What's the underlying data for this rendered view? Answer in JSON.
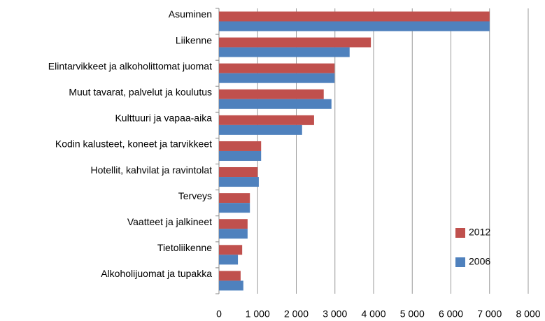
{
  "chart_data": {
    "type": "barh",
    "categories": [
      "Asuminen",
      "Liikenne",
      "Elintarvikkeet ja alkoholittomat juomat",
      "Muut tavarat, palvelut ja koulutus",
      "Kulttuuri ja vapaa-aika",
      "Kodin kalusteet, koneet ja tarvikkeet",
      "Hotellit, kahvilat ja ravintolat",
      "Terveys",
      "Vaatteet ja jalkineet",
      "Tietoliikenne",
      "Alkoholijuomat ja tupakka"
    ],
    "series": [
      {
        "name": "2012",
        "color": "#c0504d",
        "values": [
          7000,
          3930,
          2990,
          2710,
          2460,
          1090,
          1000,
          800,
          740,
          600,
          560
        ]
      },
      {
        "name": "2006",
        "color": "#4f81bd",
        "values": [
          7000,
          3380,
          2990,
          2910,
          2150,
          1090,
          1030,
          800,
          740,
          490,
          630
        ]
      }
    ],
    "xlim": [
      0,
      8000
    ],
    "xticks": [
      0,
      {
        "value": 1000,
        "label": "1 000"
      },
      {
        "value": 2000,
        "label": "2 000"
      },
      {
        "value": 3000,
        "label": "3 000"
      },
      {
        "value": 4000,
        "label": "4 000"
      },
      {
        "value": 5000,
        "label": "5 000"
      },
      {
        "value": 6000,
        "label": "6 000"
      },
      {
        "value": 7000,
        "label": "7 000"
      },
      {
        "value": 8000,
        "label": "8 000"
      }
    ],
    "grid": true,
    "legend": "right"
  }
}
